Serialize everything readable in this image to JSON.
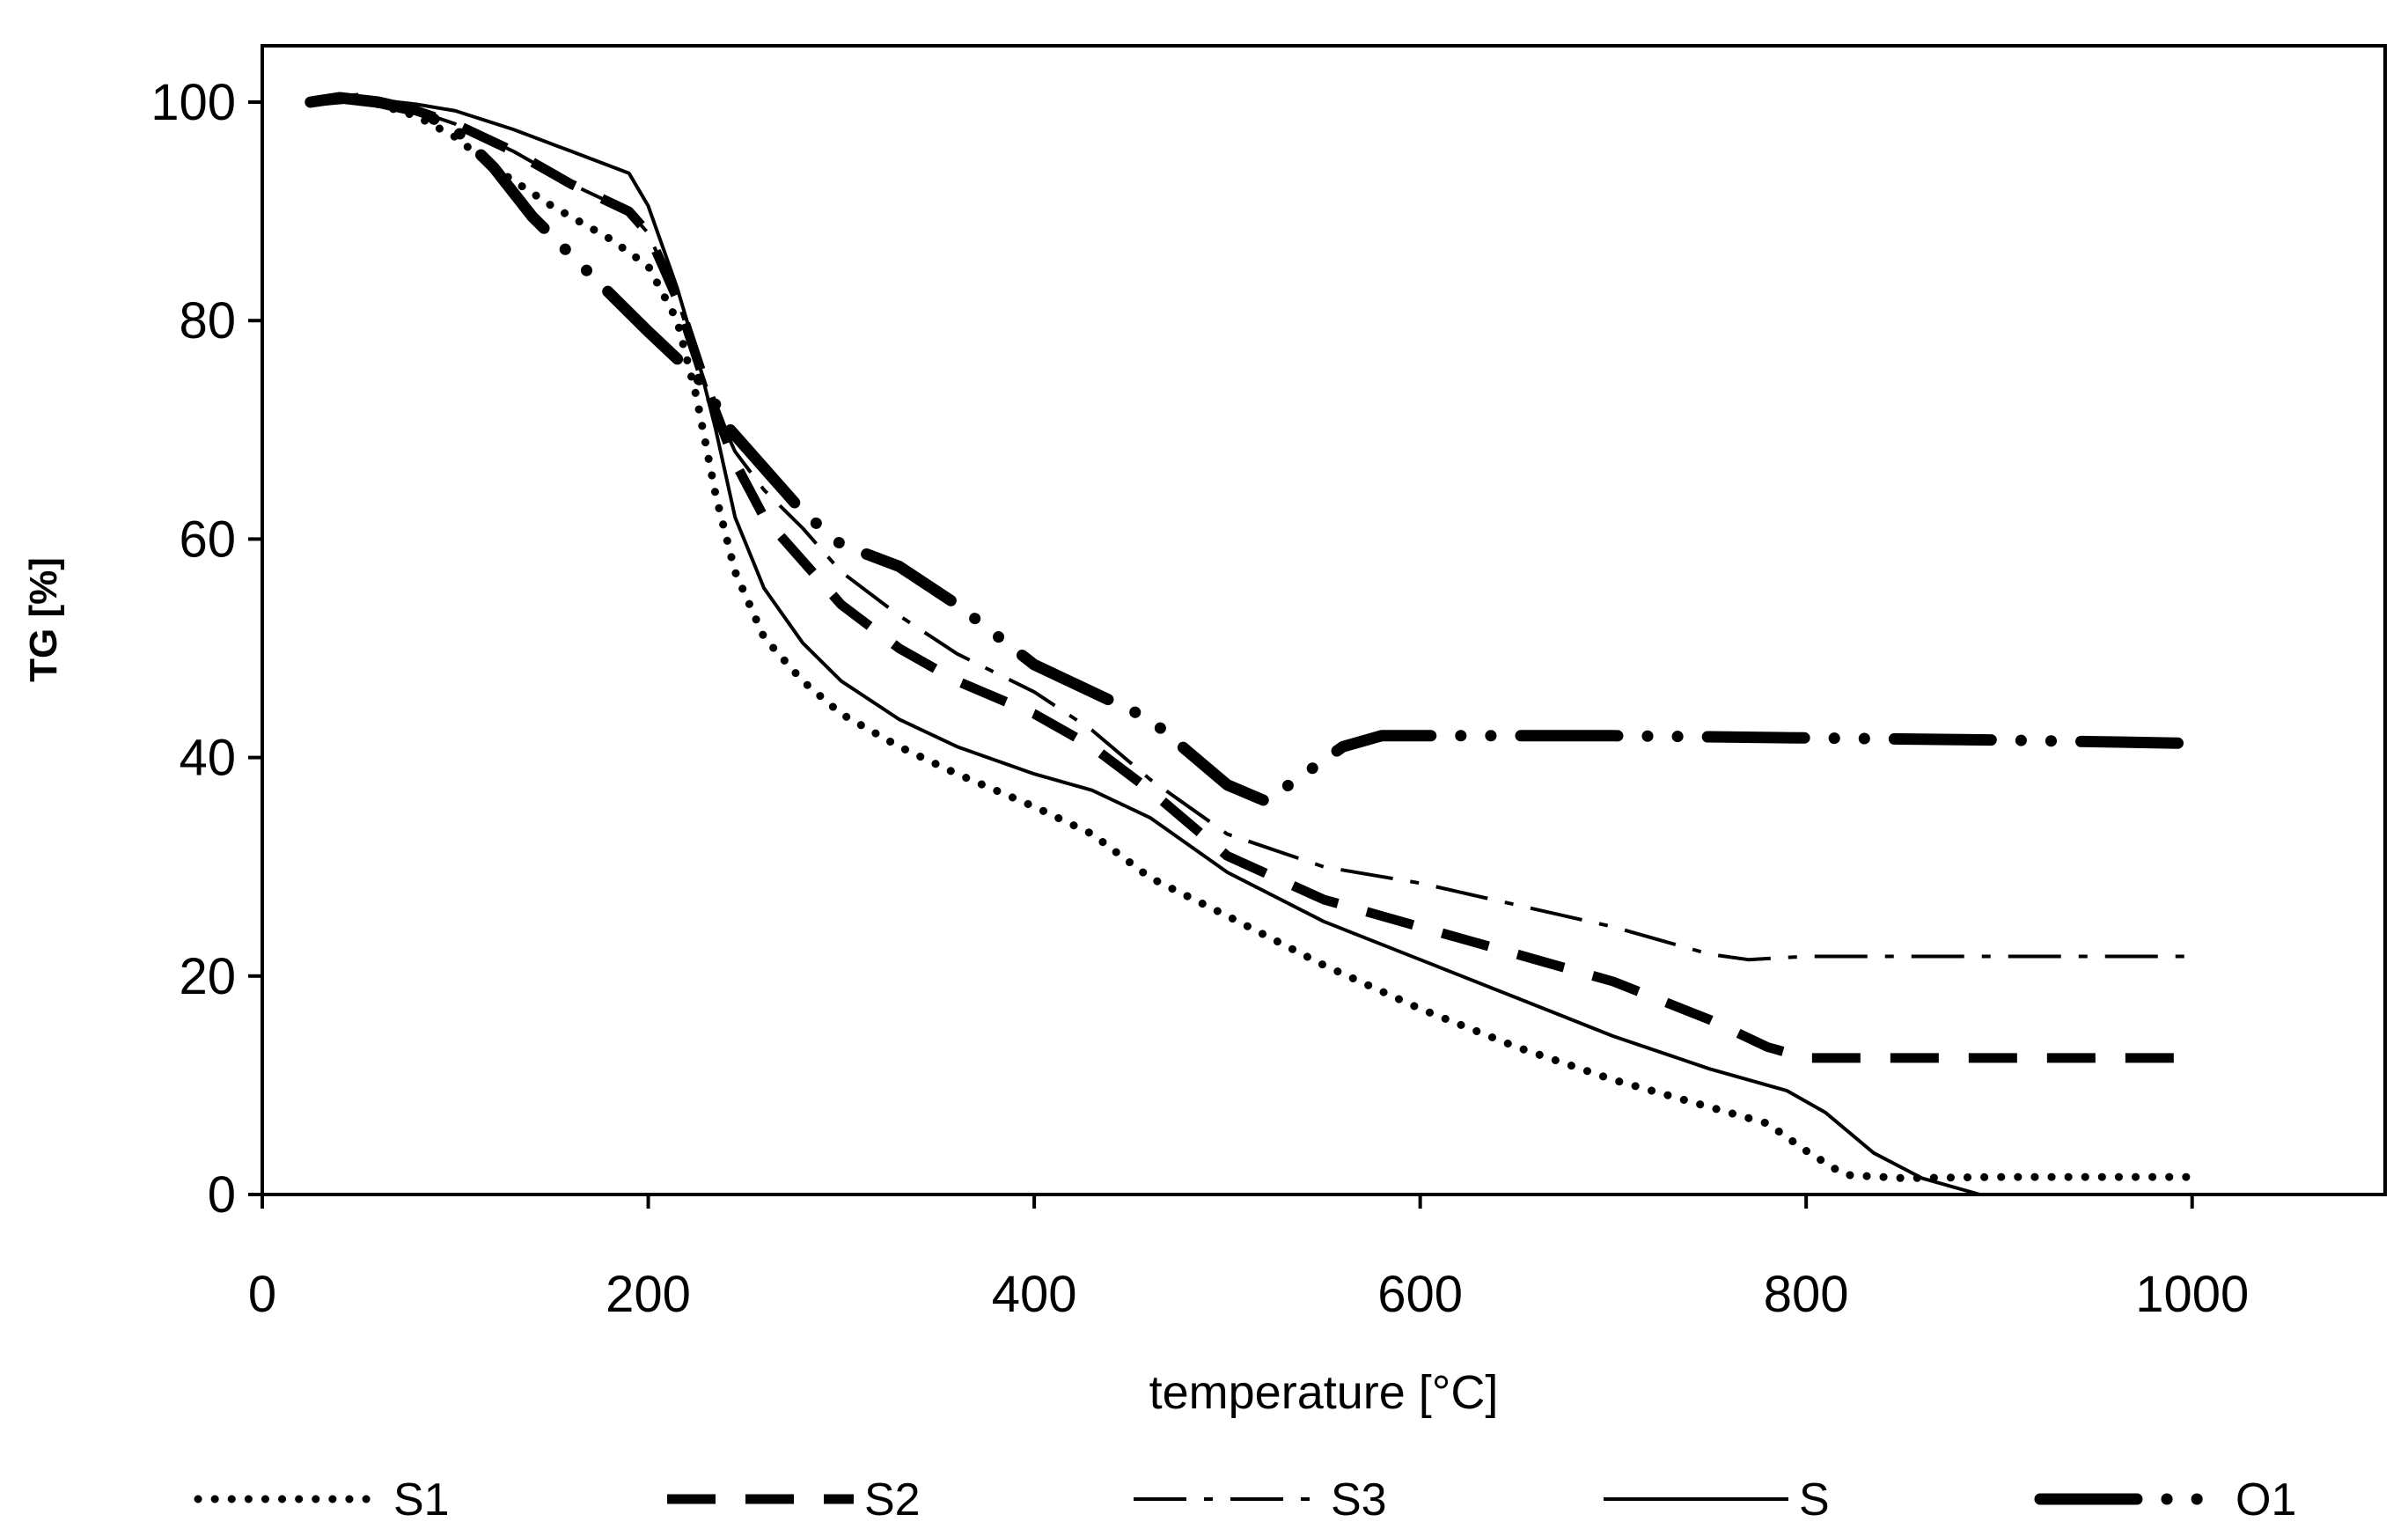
{
  "chart_data": {
    "type": "line",
    "title": "",
    "xlabel": "temperature [°C]",
    "ylabel": "TG [%]",
    "xlim": [
      0,
      1100
    ],
    "ylim": [
      0,
      105
    ],
    "xticks": [
      0,
      200,
      400,
      600,
      800,
      1000
    ],
    "yticks": [
      0,
      20,
      40,
      60,
      80,
      100
    ],
    "xtick_labels": [
      "0",
      "200",
      "400",
      "600",
      "800",
      "1000"
    ],
    "ytick_labels": [
      "0",
      "20",
      "40",
      "60",
      "80",
      "100"
    ],
    "grid": false,
    "legend_position": "bottom",
    "series": [
      {
        "name": "S1",
        "style": "dotted",
        "x": [
          25,
          40,
          60,
          80,
          100,
          120,
          150,
          180,
          200,
          215,
          225,
          235,
          245,
          260,
          280,
          300,
          330,
          360,
          400,
          430,
          460,
          500,
          550,
          600,
          650,
          700,
          750,
          780,
          800,
          820,
          850,
          900,
          1000
        ],
        "y": [
          100,
          100.3,
          99.8,
          98.7,
          96.8,
          94,
          90.5,
          87.5,
          85,
          80,
          73,
          64,
          57,
          51,
          47,
          44,
          41,
          38.5,
          35.5,
          33,
          29,
          25.5,
          21,
          17,
          13.5,
          10.5,
          8,
          6.5,
          4,
          1.8,
          1.5,
          1.6,
          1.6
        ]
      },
      {
        "name": "S2",
        "style": "dashed",
        "x": [
          25,
          50,
          80,
          100,
          130,
          160,
          190,
          200,
          215,
          230,
          245,
          260,
          280,
          300,
          330,
          360,
          400,
          430,
          460,
          500,
          550,
          600,
          650,
          700,
          750,
          780,
          800,
          850,
          900,
          1000
        ],
        "y": [
          100,
          100.4,
          99.2,
          98,
          95.5,
          92.5,
          90,
          88,
          82,
          74,
          67,
          62,
          58,
          54,
          50,
          47,
          44,
          41,
          37,
          31,
          27,
          24.5,
          22,
          19.5,
          16,
          13.5,
          12.5,
          12.5,
          12.5,
          12.5
        ]
      },
      {
        "name": "S3",
        "style": "dash-dot",
        "x": [
          25,
          50,
          80,
          100,
          130,
          160,
          190,
          200,
          215,
          230,
          245,
          260,
          280,
          300,
          330,
          360,
          400,
          430,
          460,
          500,
          550,
          600,
          650,
          700,
          750,
          770,
          800,
          850,
          900,
          1000
        ],
        "y": [
          100,
          100.4,
          99.2,
          98,
          95.5,
          92.5,
          90,
          88,
          82,
          74,
          68,
          64.5,
          61,
          57,
          53,
          49.5,
          46,
          42.5,
          38,
          33,
          30,
          28.5,
          26.5,
          24.5,
          22,
          21.5,
          21.8,
          21.8,
          21.8,
          21.8
        ]
      },
      {
        "name": "S",
        "style": "solid",
        "x": [
          25,
          50,
          80,
          100,
          130,
          160,
          190,
          200,
          215,
          225,
          235,
          245,
          260,
          280,
          300,
          330,
          360,
          400,
          430,
          460,
          500,
          550,
          600,
          650,
          700,
          750,
          790,
          810,
          835,
          860,
          890
        ],
        "y": [
          100,
          100.4,
          99.8,
          99.2,
          97.5,
          95.5,
          93.5,
          90.5,
          83,
          77,
          70,
          62,
          55.5,
          50.5,
          47,
          43.5,
          41,
          38.5,
          37,
          34.5,
          29.5,
          25,
          21.5,
          18,
          14.5,
          11.5,
          9.5,
          7.5,
          3.8,
          1.5,
          0
        ]
      },
      {
        "name": "O1",
        "style": "long-dash-dot-dot",
        "x": [
          25,
          40,
          60,
          80,
          100,
          120,
          140,
          160,
          180,
          200,
          215,
          230,
          240,
          260,
          280,
          300,
          330,
          360,
          400,
          430,
          460,
          480,
          500,
          520,
          540,
          560,
          580,
          620,
          700,
          800,
          900,
          1000
        ],
        "y": [
          100,
          100.4,
          100,
          99.2,
          97.5,
          94,
          89.5,
          86,
          82.5,
          79,
          76.5,
          74,
          70.5,
          66.5,
          62.5,
          59.5,
          57.5,
          54,
          48.5,
          46,
          43.5,
          40.5,
          37.5,
          36,
          38.5,
          41,
          42,
          42,
          42,
          41.8,
          41.6,
          41.3
        ]
      }
    ]
  }
}
